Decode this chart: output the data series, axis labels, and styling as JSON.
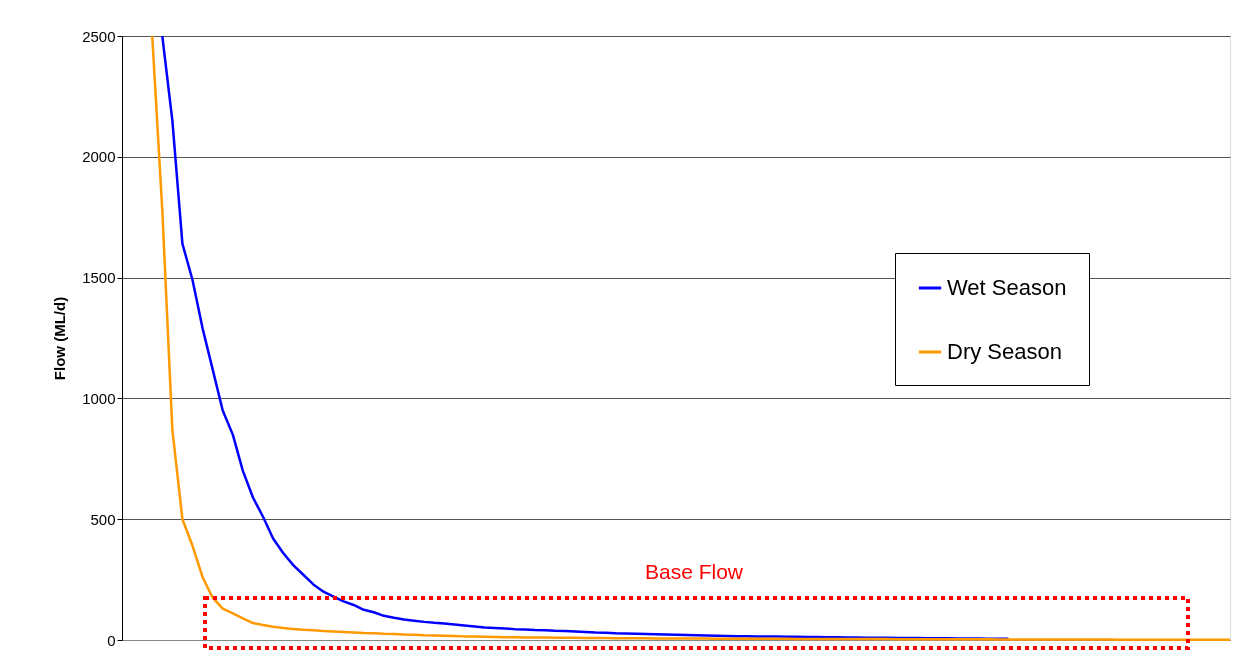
{
  "chart_data": {
    "type": "line",
    "ylabel": "Flow (ML/d)",
    "categories": [
      null,
      null,
      null,
      null,
      null,
      null,
      null,
      null,
      null,
      null,
      null,
      null,
      null,
      null,
      null,
      null,
      null,
      null,
      null,
      null,
      null,
      null,
      null,
      null,
      null,
      null,
      null,
      null,
      null,
      null,
      null,
      null,
      null,
      null,
      null,
      null,
      null,
      null,
      null,
      null,
      null,
      null,
      null,
      null,
      null,
      null,
      null,
      null,
      null,
      null,
      null,
      null,
      null,
      null,
      null,
      null,
      null,
      null,
      null,
      null,
      null,
      null,
      null,
      null,
      null,
      null,
      null,
      null,
      null,
      null,
      null,
      null,
      null,
      null,
      null,
      null,
      null,
      null,
      null,
      null,
      null,
      null,
      null,
      null,
      null,
      null,
      null,
      null,
      null,
      null,
      null,
      null,
      null,
      null,
      null,
      null,
      null,
      null,
      null,
      null,
      null,
      null,
      null,
      null,
      null,
      null,
      null,
      null,
      null,
      null,
      null
    ],
    "series": [
      {
        "name": "Wet Season",
        "color": "#0000ff",
        "values": [
          null,
          null,
          null,
          null,
          2500,
          2150,
          1640,
          1490,
          1290,
          1120,
          950,
          850,
          700,
          590,
          510,
          420,
          360,
          310,
          270,
          230,
          200,
          180,
          160,
          145,
          125,
          115,
          100,
          92,
          85,
          80,
          75,
          71,
          68,
          64,
          60,
          56,
          52,
          50,
          48,
          45,
          43,
          41,
          40,
          38,
          37,
          35,
          33,
          31,
          30,
          28,
          27,
          26,
          25,
          24,
          23,
          22,
          21,
          20,
          19,
          18,
          17,
          16,
          16,
          15,
          15,
          14,
          13,
          13,
          12,
          12,
          11,
          11,
          10,
          10,
          9,
          9,
          9,
          8,
          8,
          8,
          7,
          7,
          7,
          6,
          6,
          6,
          5,
          5,
          5,
          null,
          null,
          null,
          null,
          null,
          null,
          null,
          null,
          null,
          null,
          null,
          null,
          null,
          null,
          null,
          null,
          null,
          null,
          null,
          null,
          null,
          null
        ]
      },
      {
        "name": "Dry Season",
        "color": "#ff9900",
        "values": [
          null,
          null,
          null,
          2500,
          1780,
          870,
          500,
          390,
          260,
          175,
          130,
          110,
          90,
          70,
          62,
          55,
          50,
          46,
          42,
          40,
          37,
          35,
          33,
          31,
          29,
          28,
          26,
          25,
          23,
          22,
          20,
          19,
          18,
          17,
          15,
          14,
          13,
          12,
          11,
          11,
          10,
          10,
          10,
          9,
          9,
          9,
          8,
          8,
          8,
          7,
          7,
          7,
          7,
          6,
          6,
          6,
          6,
          6,
          6,
          5,
          5,
          5,
          5,
          5,
          5,
          5,
          5,
          4,
          4,
          4,
          4,
          4,
          4,
          4,
          4,
          4,
          4,
          3,
          3,
          3,
          3,
          3,
          3,
          3,
          3,
          3,
          3,
          2,
          2,
          2,
          2,
          2,
          2,
          2,
          2,
          2,
          2,
          2,
          2,
          1,
          1,
          1,
          1,
          1,
          1,
          1,
          1,
          1,
          1,
          1,
          1
        ]
      }
    ],
    "ylim": [
      0,
      2500
    ],
    "yticks": [
      0,
      500,
      1000,
      1500,
      2000,
      2500
    ],
    "grid": "y",
    "legend": "right",
    "tick_labels": "y",
    "annotations": [
      "Base Flow"
    ]
  }
}
